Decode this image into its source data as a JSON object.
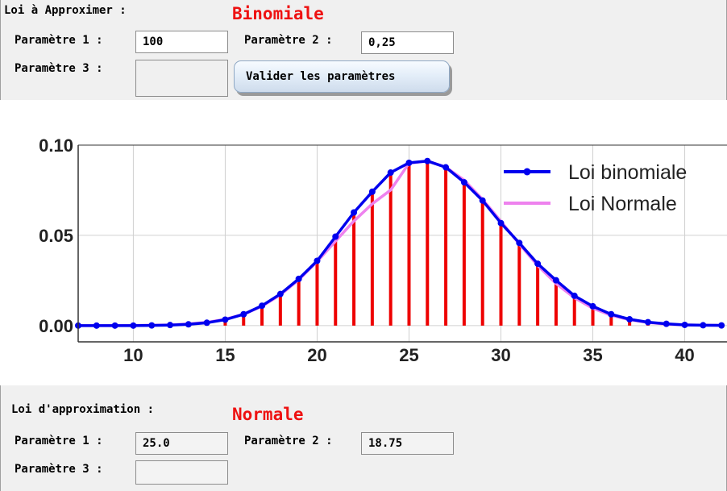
{
  "top": {
    "section_label": "Loi à Approximer :",
    "law_name": "Binomiale",
    "param1_label": "Paramètre 1 :",
    "param1_value": "100",
    "param2_label": "Paramètre 2 :",
    "param2_value": "0,25",
    "param3_label": "Paramètre 3 :",
    "param3_value": "",
    "validate_label": "Valider les paramètres"
  },
  "bottom": {
    "section_label": "Loi d'approximation :",
    "law_name": "Normale",
    "param1_label": "Paramètre 1 :",
    "param1_value": "25.0",
    "param2_label": "Paramètre 2 :",
    "param2_value": "18.75",
    "param3_label": "Paramètre 3 :",
    "param3_value": ""
  },
  "colors": {
    "law_title": "#ee1111",
    "binomial": "#0000ee",
    "normal": "#ee82ee",
    "bars": "#ee0000",
    "grid": "#d0d0d0"
  },
  "chart_data": {
    "type": "line",
    "x": [
      7,
      8,
      9,
      10,
      11,
      12,
      13,
      14,
      15,
      16,
      17,
      18,
      19,
      20,
      21,
      22,
      23,
      24,
      25,
      26,
      27,
      28,
      29,
      30,
      31,
      32,
      33,
      34,
      35,
      36,
      37,
      38,
      39,
      40,
      41,
      42
    ],
    "x_ticks": [
      "10",
      "15",
      "20",
      "25",
      "30",
      "35",
      "40"
    ],
    "y_ticks": [
      "0.00",
      "0.05",
      "0.10"
    ],
    "xlim": [
      7,
      42.3
    ],
    "ylim": [
      -0.009,
      0.1
    ],
    "grid": true,
    "legend_position": "top-right",
    "series": [
      {
        "name": "Loi binomiale",
        "type": "line-markers",
        "values": [
          0.0,
          0.0,
          0.0,
          0.0,
          0.0001,
          0.0003,
          0.0007,
          0.0016,
          0.0033,
          0.0063,
          0.011,
          0.0175,
          0.0259,
          0.0359,
          0.0493,
          0.0627,
          0.0742,
          0.0848,
          0.0902,
          0.0912,
          0.0877,
          0.0794,
          0.0693,
          0.0568,
          0.0458,
          0.0343,
          0.0251,
          0.0165,
          0.0107,
          0.0063,
          0.0035,
          0.0019,
          0.001,
          0.0004,
          0.0002,
          0.0001
        ]
      },
      {
        "name": "Loi Normale",
        "type": "line",
        "values": [
          0.0,
          0.0,
          0.0,
          0.0001,
          0.0002,
          0.0004,
          0.0009,
          0.0018,
          0.0035,
          0.0063,
          0.0107,
          0.017,
          0.0254,
          0.0355,
          0.0468,
          0.0579,
          0.0675,
          0.0751,
          0.09,
          0.0912,
          0.0878,
          0.0806,
          0.07,
          0.0578,
          0.0452,
          0.0333,
          0.0233,
          0.0154,
          0.0096,
          0.0057,
          0.0032,
          0.0017,
          0.0008,
          0.0004,
          0.0002,
          0.0001
        ]
      },
      {
        "name": "Barres",
        "type": "stem",
        "values": [
          0.0,
          0.0,
          0.0,
          0.0,
          0.0001,
          0.0003,
          0.0007,
          0.0016,
          0.0033,
          0.0063,
          0.011,
          0.0175,
          0.0259,
          0.0359,
          0.0493,
          0.0627,
          0.0742,
          0.0848,
          0.0902,
          0.0912,
          0.0877,
          0.0794,
          0.0693,
          0.0568,
          0.0458,
          0.0343,
          0.0251,
          0.0165,
          0.0107,
          0.0063,
          0.0035,
          0.0019,
          0.001,
          0.0004,
          0.0002,
          0.0001
        ]
      }
    ],
    "legend": [
      "Loi binomiale",
      "Loi Normale"
    ]
  }
}
